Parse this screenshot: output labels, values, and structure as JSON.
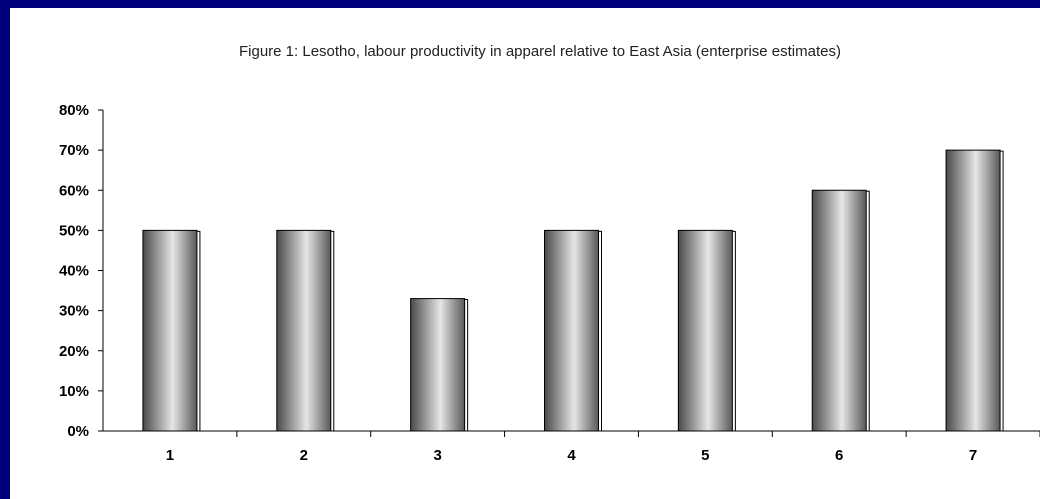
{
  "chart_data": {
    "type": "bar",
    "title": "Figure 1: Lesotho, labour productivity in apparel relative to East Asia (enterprise estimates)",
    "categories": [
      "1",
      "2",
      "3",
      "4",
      "5",
      "6",
      "7"
    ],
    "values": [
      0.5,
      0.5,
      0.33,
      0.5,
      0.5,
      0.6,
      0.7
    ],
    "y_ticks": [
      "0%",
      "10%",
      "20%",
      "30%",
      "40%",
      "50%",
      "60%",
      "70%",
      "80%"
    ],
    "ylim": [
      0,
      0.8
    ],
    "xlabel": "",
    "ylabel": "",
    "grid": false,
    "legend": "none",
    "colors": {
      "frame": "#00007a",
      "bar_dark": "#555555",
      "bar_light": "#e4e4e4"
    }
  }
}
